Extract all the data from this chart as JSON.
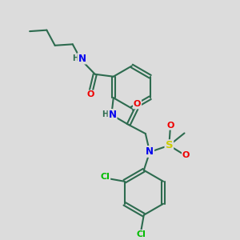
{
  "bg_color": "#dcdcdc",
  "bond_color": "#2d6b4f",
  "atom_colors": {
    "N": "#0000ee",
    "O": "#ee0000",
    "S": "#cccc00",
    "Cl": "#00bb00",
    "H": "#2d6b4f",
    "C": "#2d6b4f"
  },
  "fig_bg": "#dcdcdc",
  "lw": 1.5,
  "fs": 8.5
}
